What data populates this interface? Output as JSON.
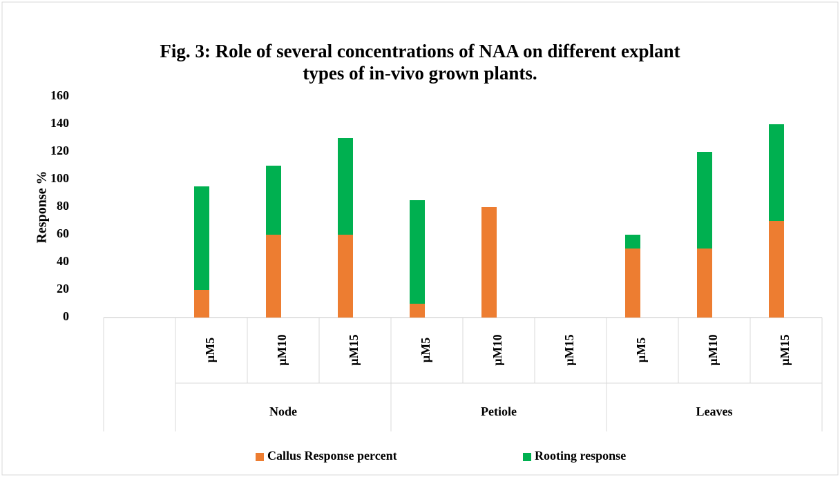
{
  "chart_data": {
    "type": "stacked_bar",
    "title": "Fig. 3: Role of several concentrations of NAA on different explant types of in-vivo grown plants.",
    "y_label": "Response %",
    "categories": [
      null,
      "µM5",
      "µM10",
      "µM15",
      "µM5",
      "µM10",
      "µM15",
      "µM5",
      "µM10",
      "µM15"
    ],
    "groups": [
      "Node",
      "Petiole",
      "Leaves"
    ],
    "series": [
      {
        "name": "Callus Response percent",
        "color": "#ed7d31",
        "values": [
          null,
          20,
          60,
          60,
          10,
          80,
          0,
          50,
          50,
          70
        ]
      },
      {
        "name": "Rooting response",
        "color": "#00b050",
        "values": [
          null,
          75,
          50,
          70,
          75,
          0,
          0,
          10,
          70,
          70
        ]
      }
    ],
    "ylim": [
      0,
      160
    ],
    "yticks": [
      0,
      20,
      40,
      60,
      80,
      100,
      120,
      140,
      160
    ],
    "grid": false,
    "legend": "bottom"
  }
}
